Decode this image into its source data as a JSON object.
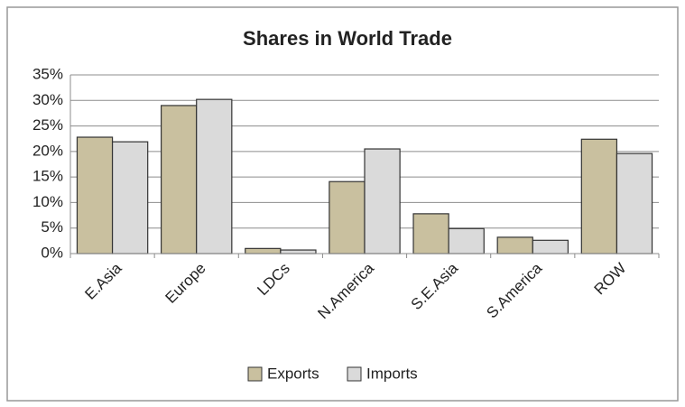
{
  "chart_data": {
    "type": "bar",
    "title": "Shares in World Trade",
    "categories": [
      "E.Asia",
      "Europe",
      "LDCs",
      "N.America",
      "S.E.Asia",
      "S.America",
      "ROW"
    ],
    "series": [
      {
        "name": "Exports",
        "color": "#c9c09f",
        "values": [
          22.8,
          29.0,
          1.0,
          14.1,
          7.8,
          3.2,
          22.4
        ]
      },
      {
        "name": "Imports",
        "color": "#dadada",
        "values": [
          21.9,
          30.2,
          0.7,
          20.5,
          4.9,
          2.6,
          19.6
        ]
      }
    ],
    "ylim": [
      0,
      35
    ],
    "yticks": [
      {
        "value": 0,
        "label": "0%"
      },
      {
        "value": 5,
        "label": "5%"
      },
      {
        "value": 10,
        "label": "10%"
      },
      {
        "value": 15,
        "label": "15%"
      },
      {
        "value": 20,
        "label": "20%"
      },
      {
        "value": 25,
        "label": "25%"
      },
      {
        "value": 30,
        "label": "30%"
      },
      {
        "value": 35,
        "label": "35%"
      }
    ],
    "grid": true,
    "legend": "bottom"
  }
}
